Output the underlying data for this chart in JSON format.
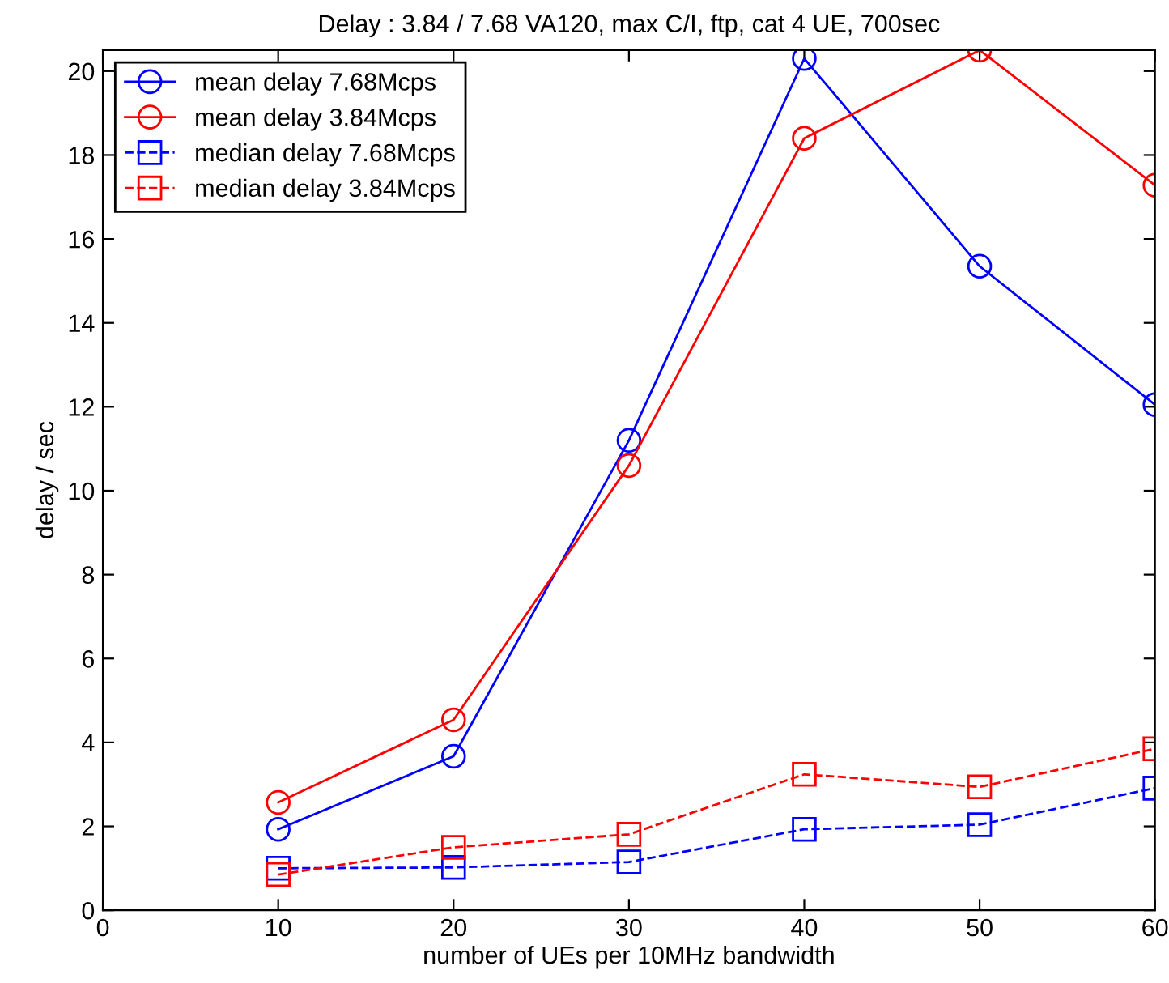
{
  "chart_data": {
    "type": "line",
    "title": "Delay : 3.84 / 7.68 VA120, max C/I, ftp, cat 4 UE, 700sec",
    "xlabel": "number of UEs per 10MHz bandwidth",
    "ylabel": "delay / sec",
    "x": [
      10,
      20,
      30,
      40,
      50,
      60
    ],
    "series": [
      {
        "name": "mean delay 7.68Mcps",
        "color": "#0000ff",
        "marker": "circle",
        "line_style": "solid",
        "values": [
          1.93,
          3.67,
          11.2,
          20.3,
          15.35,
          12.05
        ]
      },
      {
        "name": "mean delay 3.84Mcps",
        "color": "#ff0000",
        "marker": "circle",
        "line_style": "solid",
        "values": [
          2.57,
          4.54,
          10.6,
          18.4,
          20.5,
          17.28
        ]
      },
      {
        "name": "median delay 7.68Mcps",
        "color": "#0000ff",
        "marker": "square",
        "line_style": "dashed",
        "values": [
          1.0,
          1.02,
          1.15,
          1.93,
          2.04,
          2.91
        ]
      },
      {
        "name": "median delay 3.84Mcps",
        "color": "#ff0000",
        "marker": "square",
        "line_style": "dashed",
        "values": [
          0.85,
          1.5,
          1.81,
          3.24,
          2.94,
          3.85
        ]
      }
    ],
    "xlim": [
      0,
      60
    ],
    "xticks": [
      0,
      10,
      20,
      30,
      40,
      50,
      60
    ],
    "ylim": [
      0,
      20.5
    ],
    "yticks": [
      0,
      2,
      4,
      6,
      8,
      10,
      12,
      14,
      16,
      18,
      20
    ],
    "grid": false,
    "legend": "top left"
  }
}
